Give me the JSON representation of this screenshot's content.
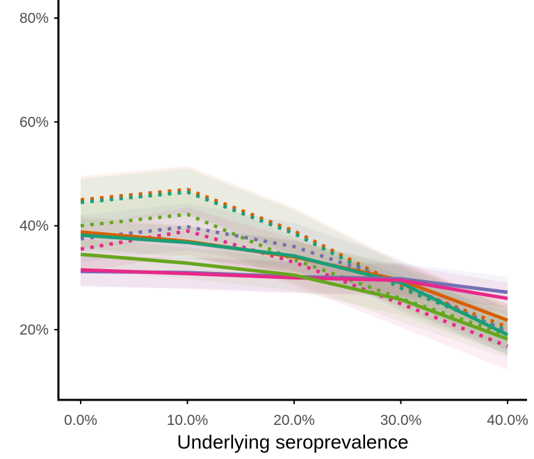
{
  "chart_data": {
    "type": "line",
    "title": "",
    "xlabel": "Underlying seroprevalence",
    "ylabel": "",
    "x": [
      0,
      10,
      20,
      30,
      40
    ],
    "x_tick_labels": [
      "0.0%",
      "10.0%",
      "20.0%",
      "30.0%",
      "40.0%"
    ],
    "y_ticks": [
      20,
      40,
      60,
      80
    ],
    "y_tick_labels": [
      "20%",
      "40%",
      "60%",
      "80%"
    ],
    "xlim": [
      -2,
      42
    ],
    "ylim": [
      7,
      84
    ],
    "grid": false,
    "legend": "none",
    "series": [
      {
        "color": "#d95f02",
        "style": "solid",
        "values": [
          38.8,
          37.0,
          34.0,
          29.5,
          21.8
        ]
      },
      {
        "color": "#1b9e77",
        "style": "solid",
        "values": [
          38.2,
          36.8,
          34.2,
          29.0,
          19.0
        ]
      },
      {
        "color": "#7570b3",
        "style": "solid",
        "values": [
          31.2,
          31.0,
          30.2,
          29.8,
          27.2
        ]
      },
      {
        "color": "#e7298a",
        "style": "solid",
        "values": [
          31.5,
          30.8,
          30.0,
          29.5,
          26.0
        ]
      },
      {
        "color": "#66a61e",
        "style": "solid",
        "values": [
          34.5,
          32.8,
          30.5,
          25.8,
          18.2
        ]
      },
      {
        "color": "#d95f02",
        "style": "dotted",
        "values": [
          45.0,
          47.0,
          39.0,
          28.5,
          20.5
        ]
      },
      {
        "color": "#1b9e77",
        "style": "dotted",
        "values": [
          44.5,
          46.5,
          38.5,
          28.0,
          19.8
        ]
      },
      {
        "color": "#66a61e",
        "style": "dotted",
        "values": [
          40.0,
          42.2,
          33.5,
          26.0,
          19.0
        ]
      },
      {
        "color": "#7570b3",
        "style": "dotted",
        "values": [
          37.5,
          39.8,
          36.0,
          29.0,
          19.5
        ]
      },
      {
        "color": "#e7298a",
        "style": "dotted",
        "values": [
          35.5,
          39.0,
          33.0,
          25.0,
          16.8
        ]
      }
    ]
  }
}
